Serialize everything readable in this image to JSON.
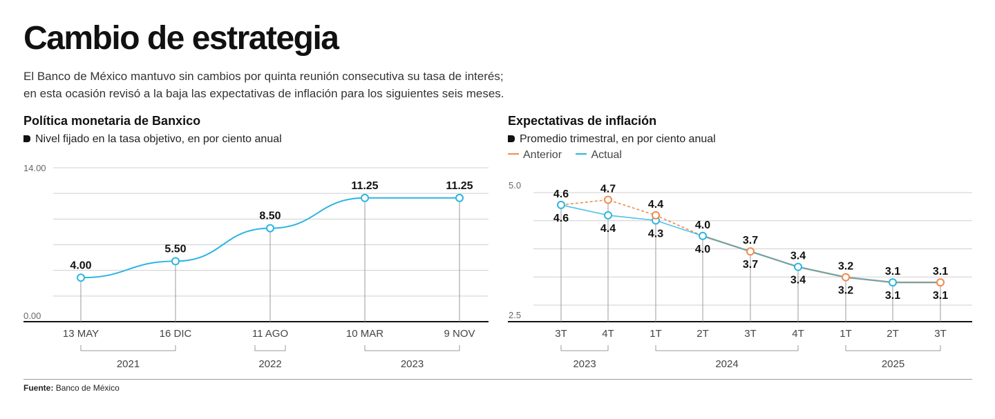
{
  "header": {
    "title": "Cambio de estrategia",
    "subtitle_lines": [
      "El Banco de México mantuvo sin cambios por quinta reunión consecutiva su tasa de interés;",
      "en esta ocasión revisó a la baja las expectativas de inflación para los siguientes seis meses."
    ]
  },
  "panels": {
    "left": {
      "title": "Política monetaria de Banxico",
      "subtitle": "Nivel fijado en la tasa objetivo, en por ciento anual"
    },
    "right": {
      "title": "Expectativas de inflación",
      "subtitle": "Promedio trimestral, en por ciento anual"
    }
  },
  "legend": {
    "anterior": "Anterior",
    "actual": "Actual",
    "colors": {
      "anterior": "#f08a4b",
      "actual": "#2bb5e3"
    }
  },
  "chart_data": [
    {
      "type": "line",
      "title": "Política monetaria de Banxico",
      "subtitle": "Nivel fijado en la tasa objetivo, en por ciento anual",
      "ylim": [
        0,
        14
      ],
      "ytick_labels": [
        "14.00",
        "0.00"
      ],
      "grid": true,
      "color": "#2bb5e3",
      "points": [
        {
          "label": "13 MAY",
          "value": 4.0,
          "value_label": "4.00"
        },
        {
          "label": "16 DIC",
          "value": 5.5,
          "value_label": "5.50"
        },
        {
          "label": "11 AGO",
          "value": 8.5,
          "value_label": "8.50"
        },
        {
          "label": "10 MAR",
          "value": 11.25,
          "value_label": "11.25"
        },
        {
          "label": "9 NOV",
          "value": 11.25,
          "value_label": "11.25"
        }
      ],
      "years": [
        {
          "label": "2021",
          "from": 0,
          "to": 1
        },
        {
          "label": "2022",
          "from": 2,
          "to": 2
        },
        {
          "label": "2023",
          "from": 3,
          "to": 4
        }
      ]
    },
    {
      "type": "line",
      "title": "Expectativas de inflación",
      "subtitle": "Promedio trimestral, en por ciento anual",
      "ylim": [
        2.5,
        5.0
      ],
      "ytick_labels": [
        "5.0",
        "2.5"
      ],
      "grid": true,
      "legend": "top-left",
      "categories": [
        "3T",
        "4T",
        "1T",
        "2T",
        "3T",
        "4T",
        "1T",
        "2T",
        "3T"
      ],
      "series": [
        {
          "name": "Anterior",
          "color": "#f08a4b",
          "values": [
            4.6,
            4.7,
            4.4,
            4.0,
            3.7,
            3.4,
            3.2,
            3.1,
            3.1
          ],
          "labels": [
            "4.6",
            "4.7",
            "4.4",
            "4.0",
            "3.7",
            "3.4",
            "3.2",
            "3.1",
            "3.1"
          ]
        },
        {
          "name": "Actual",
          "color": "#2bb5e3",
          "values": [
            4.6,
            4.4,
            4.3,
            4.0,
            3.7,
            3.4,
            3.2,
            3.1,
            3.1
          ],
          "labels": [
            "4.6",
            "4.4",
            "4.3",
            "4.0",
            "3.7",
            "3.4",
            "3.2",
            "3.1",
            "3.1"
          ]
        }
      ],
      "years": [
        {
          "label": "2023",
          "from": 0,
          "to": 1
        },
        {
          "label": "2024",
          "from": 2,
          "to": 5
        },
        {
          "label": "2025",
          "from": 6,
          "to": 8
        }
      ]
    }
  ],
  "footer": {
    "source_label": "Fuente:",
    "source_value": "Banco de México"
  }
}
